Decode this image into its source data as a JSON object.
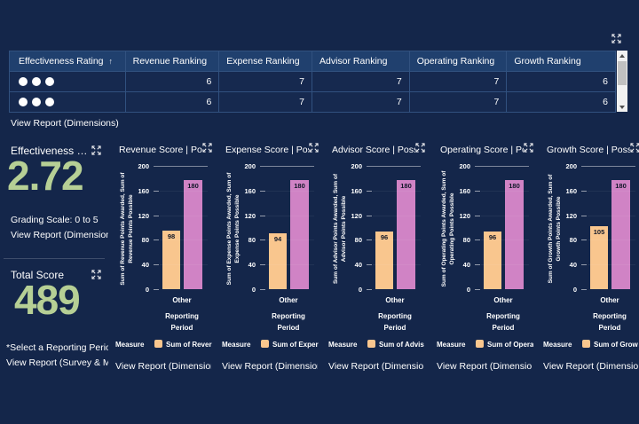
{
  "colors": {
    "background": "#14264A",
    "table_header_bg": "#20406E",
    "table_row_bg": "#16294F",
    "table_border": "#31517F",
    "accent_green": "#B6CF95",
    "bar_awarded": "#F9C68E",
    "bar_possible": "#D083C5",
    "text": "#FFFFFF"
  },
  "table": {
    "columns": [
      "Effectiveness Rating",
      "Revenue Ranking",
      "Expense Ranking",
      "Advisor Ranking",
      "Operating Ranking",
      "Growth Ranking"
    ],
    "sort_indicator": "↑",
    "rows": [
      {
        "rating_dots": 3,
        "values": [
          6,
          7,
          7,
          7,
          6
        ]
      },
      {
        "rating_dots": 3,
        "values": [
          6,
          7,
          7,
          7,
          6
        ]
      }
    ],
    "footer_link": "View Report (Dimensions)"
  },
  "kpis": [
    {
      "title": "Effectiveness …",
      "value": "2.72",
      "note": "Grading Scale: 0 to 5",
      "link": "View Report (Dimensions)"
    },
    {
      "title": "Total Score",
      "value": "489",
      "note": "*Select a Reporting Period",
      "link": "View Report (Survey & Me"
    }
  ],
  "chart_data": [
    {
      "type": "bar",
      "title": "Revenue Score | Poss…",
      "ylabel": "Sum of Revenue Points Awarded, Sum of Revenue Points Possible",
      "ylabel_lines": [
        "Sum of Revenue Points Awarded, Sum of",
        "Revenue Points Possible"
      ],
      "ylim": [
        0,
        200
      ],
      "yticks": [
        0,
        40,
        80,
        120,
        160,
        200
      ],
      "categories": [
        "Other"
      ],
      "xlabel": "Reporting Period",
      "xlabel_lines": [
        "Reporting",
        "Period"
      ],
      "bars": [
        {
          "value": 98,
          "color": "#F9C68E"
        },
        {
          "value": 180,
          "color": "#D083C5"
        }
      ],
      "legend": {
        "title": "Measure",
        "items": [
          {
            "label": "Sum of Rever",
            "color": "#F9C68E"
          }
        ]
      },
      "link": "View Report (Dimension…"
    },
    {
      "type": "bar",
      "title": "Expense Score | Poss…",
      "ylabel": "Sum of Expense Points Awarded, Sum of Expense Points Possible",
      "ylabel_lines": [
        "Sum of Expense Points Awarded, Sum of",
        "Expense Points Possible"
      ],
      "ylim": [
        0,
        200
      ],
      "yticks": [
        0,
        40,
        80,
        120,
        160,
        200
      ],
      "categories": [
        "Other"
      ],
      "xlabel": "Reporting Period",
      "xlabel_lines": [
        "Reporting",
        "Period"
      ],
      "bars": [
        {
          "value": 94,
          "color": "#F9C68E"
        },
        {
          "value": 180,
          "color": "#D083C5"
        }
      ],
      "legend": {
        "title": "Measure",
        "items": [
          {
            "label": "Sum of Exper",
            "color": "#F9C68E"
          }
        ]
      },
      "link": "View Report (Dimension…"
    },
    {
      "type": "bar",
      "title": "Advisor Score | Possi…",
      "ylabel": "Sum of Advisor Points Awarded, Sum of Advisor Points Possible",
      "ylabel_lines": [
        "Sum of Advisor Points Awarded, Sum of",
        "Advisor Points Possible"
      ],
      "ylim": [
        0,
        200
      ],
      "yticks": [
        0,
        40,
        80,
        120,
        160,
        200
      ],
      "categories": [
        "Other"
      ],
      "xlabel": "Reporting Period",
      "xlabel_lines": [
        "Reporting",
        "Period"
      ],
      "bars": [
        {
          "value": 96,
          "color": "#F9C68E"
        },
        {
          "value": 180,
          "color": "#D083C5"
        }
      ],
      "legend": {
        "title": "Measure",
        "items": [
          {
            "label": "Sum of Advis",
            "color": "#F9C68E"
          }
        ]
      },
      "link": "View Report (Dimensio…"
    },
    {
      "type": "bar",
      "title": "Operating Score | Po…",
      "ylabel": "Sum of Operating Points Awarded, Sum of Operating Points Possible",
      "ylabel_lines": [
        "Sum of Operating Points Awarded, Sum of",
        "Operating Points Possible"
      ],
      "ylim": [
        0,
        200
      ],
      "yticks": [
        0,
        40,
        80,
        120,
        160,
        200
      ],
      "categories": [
        "Other"
      ],
      "xlabel": "Reporting Period",
      "xlabel_lines": [
        "Reporting",
        "Period"
      ],
      "bars": [
        {
          "value": 96,
          "color": "#F9C68E"
        },
        {
          "value": 180,
          "color": "#D083C5"
        }
      ],
      "legend": {
        "title": "Measure",
        "items": [
          {
            "label": "Sum of Opera",
            "color": "#F9C68E"
          }
        ]
      },
      "link": "View Report (Dimensio…"
    },
    {
      "type": "bar",
      "title": "Growth Score | Possibl…",
      "ylabel": "Sum of Growth Points Awarded, Sum of Growth Points Possible",
      "ylabel_lines": [
        "Sum of Growth Points Awarded, Sum of",
        "Growth Points Possible"
      ],
      "ylim": [
        0,
        200
      ],
      "yticks": [
        0,
        40,
        80,
        120,
        160,
        200
      ],
      "categories": [
        "Other"
      ],
      "xlabel": "Reporting Period",
      "xlabel_lines": [
        "Reporting",
        "Period"
      ],
      "bars": [
        {
          "value": 105,
          "color": "#F9C68E"
        },
        {
          "value": 180,
          "color": "#D083C5"
        }
      ],
      "legend": {
        "title": "Measure",
        "items": [
          {
            "label": "Sum of Grow",
            "color": "#F9C68E"
          }
        ]
      },
      "link": "View Report (Dimensio…"
    }
  ]
}
